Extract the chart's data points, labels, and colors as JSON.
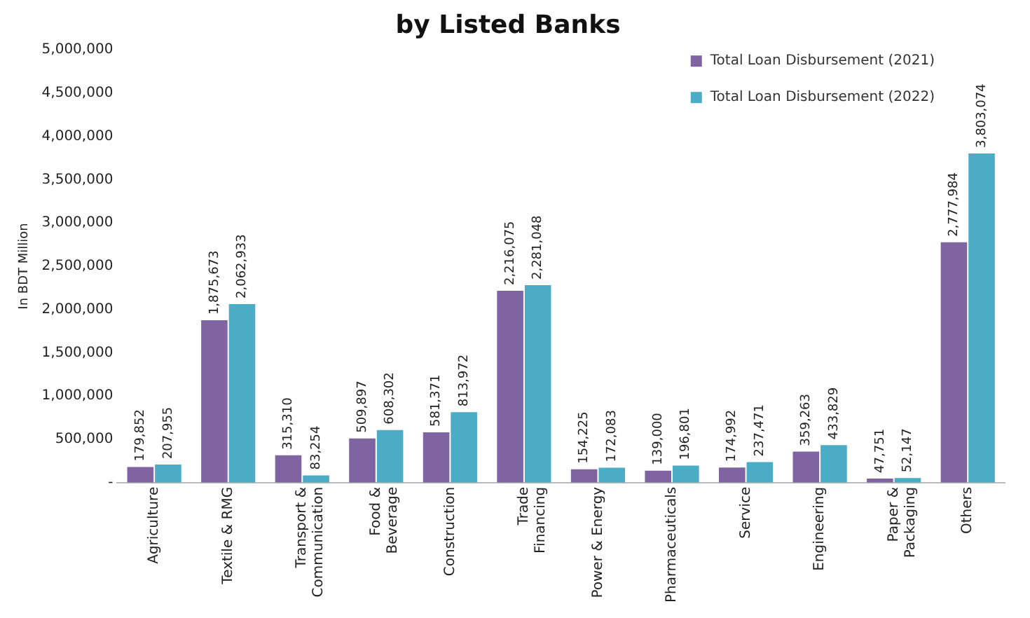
{
  "chart_data": {
    "type": "bar",
    "title": "by Listed Banks",
    "ylabel": "In BDT Million",
    "categories": [
      "Agriculture",
      "Textile & RMG",
      "Transport & Communication",
      "Food & Beverage",
      "Construction",
      "Trade Financing",
      "Power & Energy",
      "Pharmaceuticals",
      "Service",
      "Engineering",
      "Paper & Packaging",
      "Others"
    ],
    "series": [
      {
        "name": "Total Loan Disbursement (2021)",
        "color": "#8064a2",
        "values": [
          179852,
          1875673,
          315310,
          509897,
          581371,
          2216075,
          154225,
          139000,
          174992,
          359263,
          47751,
          2777984
        ],
        "value_labels": [
          "179,852",
          "1,875,673",
          "315,310",
          "509,897",
          "581,371",
          "2,216,075",
          "154,225",
          "139,000",
          "174,992",
          "359,263",
          "47,751",
          "2,777,984"
        ]
      },
      {
        "name": "Total Loan Disbursement (2022)",
        "color": "#4bacc6",
        "values": [
          207955,
          2062933,
          83254,
          608302,
          813972,
          2281048,
          172083,
          196801,
          237471,
          433829,
          52147,
          3803074
        ],
        "value_labels": [
          "207,955",
          "2,062,933",
          "83,254",
          "608,302",
          "813,972",
          "2,281,048",
          "172,083",
          "196,801",
          "237,471",
          "433,829",
          "52,147",
          "3,803,074"
        ]
      }
    ],
    "ylim": [
      0,
      5000000
    ],
    "yticks": [
      {
        "value": 0,
        "label": "-"
      },
      {
        "value": 500000,
        "label": "500,000"
      },
      {
        "value": 1000000,
        "label": "1,000,000"
      },
      {
        "value": 1500000,
        "label": "1,500,000"
      },
      {
        "value": 2000000,
        "label": "2,000,000"
      },
      {
        "value": 2500000,
        "label": "2,500,000"
      },
      {
        "value": 3000000,
        "label": "3,000,000"
      },
      {
        "value": 3500000,
        "label": "3,500,000"
      },
      {
        "value": 4000000,
        "label": "4,000,000"
      },
      {
        "value": 4500000,
        "label": "4,500,000"
      },
      {
        "value": 5000000,
        "label": "5,000,000"
      }
    ],
    "grid": false,
    "legend": "top right"
  }
}
